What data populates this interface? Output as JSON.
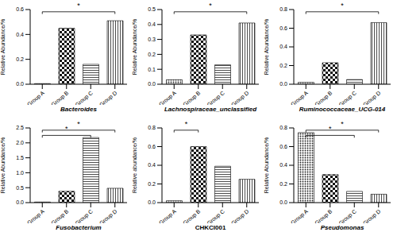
{
  "chart_data": [
    {
      "type": "bar",
      "x_label": "Bacteroides",
      "y_label": "Relative Abundance/%",
      "categories": [
        "Group A",
        "Group B",
        "Group C",
        "Group D"
      ],
      "values": [
        0.005,
        0.45,
        0.16,
        0.51
      ],
      "ylim": [
        0,
        0.6
      ],
      "yticks": [
        {
          "value": 0,
          "label": "0.0"
        },
        0.2,
        0.4,
        0.6
      ],
      "annotations": [
        {
          "text": "*",
          "from": "Group A",
          "to": "Group D"
        }
      ]
    },
    {
      "type": "bar",
      "x_label": "Lachnospiraceae_unclassified",
      "y_label": "Relative Abundance/%",
      "categories": [
        "Group A",
        "Group B",
        "Group C",
        "Group D"
      ],
      "values": [
        0.03,
        0.33,
        0.13,
        0.41
      ],
      "ylim": [
        0,
        0.5
      ],
      "yticks": [
        {
          "value": 0,
          "label": "0.0"
        },
        0.1,
        0.2,
        0.3,
        0.4,
        0.5
      ],
      "annotations": [
        {
          "text": "*",
          "from": "Group A",
          "to": "Group D"
        }
      ]
    },
    {
      "type": "bar",
      "x_label": "Ruminococcaceae_UCG-014",
      "y_label": "Relative Abundance/%",
      "categories": [
        "Group A",
        "Group B",
        "Group C",
        "Group D"
      ],
      "values": [
        0.02,
        0.23,
        0.05,
        0.66
      ],
      "ylim": [
        0,
        0.8
      ],
      "yticks": [
        {
          "value": 0,
          "label": "0.0"
        },
        0.2,
        0.4,
        0.6,
        0.8
      ],
      "annotations": [
        {
          "text": "*",
          "from": "Group A",
          "to": "Group D"
        }
      ]
    },
    {
      "type": "bar",
      "x_label": "Fusobacterium",
      "y_label": "Relative Abundance/%",
      "categories": [
        "Group A",
        "Group B",
        "Group C",
        "Group D"
      ],
      "values": [
        0.02,
        0.38,
        2.18,
        0.48
      ],
      "ylim": [
        0,
        2.5
      ],
      "yticks": [
        {
          "value": 0,
          "label": "0.0"
        },
        0.5,
        {
          "value": 1,
          "label": "1.0"
        },
        1.5,
        {
          "value": 2,
          "label": "2.0"
        },
        2.5
      ],
      "annotations": [
        {
          "text": "*",
          "from": "Group A",
          "to": "Group C"
        },
        {
          "text": "*",
          "from": "Group A",
          "to": "Group D"
        }
      ]
    },
    {
      "type": "bar",
      "x_label": "CHKCI001",
      "y_label": "Relative abundance/%",
      "categories": [
        "Group A",
        "Group B",
        "Group C",
        "Group D"
      ],
      "values": [
        0.02,
        0.6,
        0.39,
        0.25
      ],
      "ylim": [
        0,
        0.8
      ],
      "yticks": [
        {
          "value": 0,
          "label": "0.0"
        },
        0.2,
        0.4,
        0.6,
        0.8
      ],
      "annotations": [
        {
          "text": "*",
          "from": "Group A",
          "to": "Group B"
        }
      ]
    },
    {
      "type": "bar",
      "x_label": "Pseudomonas",
      "y_label": "Relative Abundance/%",
      "categories": [
        "Group A",
        "Group B",
        "Group C",
        "Group D"
      ],
      "values": [
        0.75,
        0.3,
        0.12,
        0.09
      ],
      "ylim": [
        0,
        0.8
      ],
      "yticks": [
        {
          "value": 0,
          "label": "0.0"
        },
        0.2,
        0.4,
        0.6,
        0.8
      ],
      "annotations": [
        {
          "text": "*",
          "from": "Group A",
          "to": "Group C"
        },
        {
          "text": "*",
          "from": "Group A",
          "to": "Group D"
        }
      ]
    }
  ]
}
